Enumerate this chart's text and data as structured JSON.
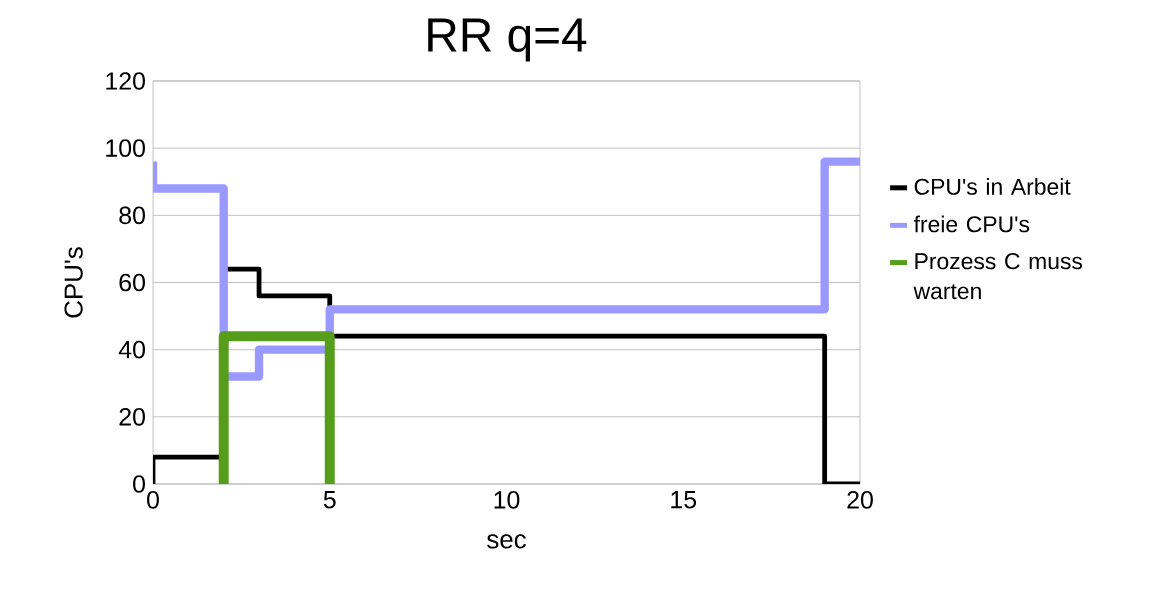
{
  "chart_data": {
    "type": "line",
    "title": "RR q=4",
    "xlabel": "sec",
    "ylabel": "CPU's",
    "xlim": [
      0,
      20
    ],
    "ylim": [
      0,
      120
    ],
    "xticks": [
      0,
      5,
      10,
      15,
      20
    ],
    "yticks": [
      0,
      20,
      40,
      60,
      80,
      100,
      120
    ],
    "grid": "y",
    "legend": "right",
    "marker": "none",
    "line_style": "solid",
    "series": [
      {
        "name": "CPU's in Arbeit",
        "color": "#000000",
        "x": [
          0,
          0,
          2,
          2,
          3,
          3,
          5,
          5,
          19,
          19,
          20
        ],
        "values": [
          0,
          8,
          8,
          64,
          64,
          56,
          56,
          44,
          44,
          0,
          0
        ]
      },
      {
        "name": "freie CPU's",
        "color": "#9999ff",
        "x": [
          0,
          0,
          2,
          2,
          3,
          3,
          5,
          5,
          19,
          19,
          20
        ],
        "values": [
          96,
          88,
          88,
          32,
          32,
          40,
          40,
          52,
          52,
          96,
          96
        ]
      },
      {
        "name": "Prozess C muss warten",
        "color": "#579d1c",
        "x": [
          2,
          2,
          5,
          5
        ],
        "values": [
          0,
          44,
          44,
          0
        ]
      }
    ]
  }
}
